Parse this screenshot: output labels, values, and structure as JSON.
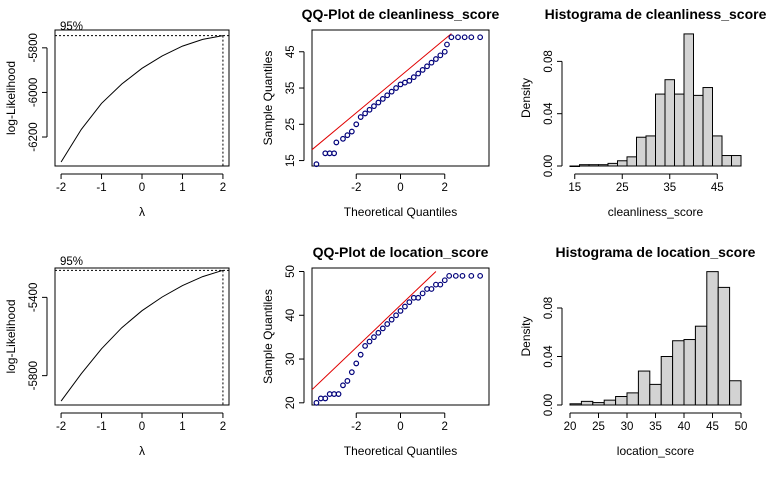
{
  "chart_data": [
    {
      "id": "bc1",
      "type": "line",
      "title": "",
      "xlabel": "λ",
      "ylabel": "log-Likelihood",
      "xlim": [
        -2.15,
        2.15
      ],
      "ylim": [
        -6330,
        -5720
      ],
      "xticks": [
        "-2",
        "-1",
        "0",
        "1",
        "2"
      ],
      "yticks": [
        "-6200",
        "-6000",
        "-5800"
      ],
      "annotation": "95%",
      "x": [
        -2,
        -1.5,
        -1,
        -0.5,
        0,
        0.5,
        1,
        1.5,
        2
      ],
      "y": [
        -6312,
        -6166,
        -6049,
        -5962,
        -5892,
        -5836,
        -5792,
        -5762,
        -5745
      ],
      "max_line_y": -5745,
      "ci_line_y": -5747,
      "optimum_x": 2
    },
    {
      "id": "qq1",
      "type": "scatter",
      "title": "QQ-Plot de cleanliness_score",
      "xlabel": "Theoretical Quantiles",
      "ylabel": "Sample Quantiles",
      "xlim": [
        -4,
        4
      ],
      "ylim": [
        13.5,
        51
      ],
      "xticks": [
        "-2",
        "0",
        "2"
      ],
      "yticks": [
        "15",
        "25",
        "35",
        "45"
      ],
      "reference_line": {
        "x": [
          -4,
          2.3
        ],
        "y": [
          18,
          50
        ]
      },
      "x": [
        -3.8,
        -3.4,
        -3.2,
        -3.0,
        -2.9,
        -2.6,
        -2.4,
        -2.2,
        -2.0,
        -1.8,
        -1.6,
        -1.4,
        -1.2,
        -1.0,
        -0.8,
        -0.6,
        -0.4,
        -0.2,
        0.0,
        0.2,
        0.4,
        0.6,
        0.8,
        1.0,
        1.2,
        1.4,
        1.6,
        1.8,
        2.0,
        2.1,
        2.3,
        2.6,
        2.9,
        3.2,
        3.6
      ],
      "y": [
        14,
        17,
        17,
        17,
        20,
        21,
        22,
        23,
        25,
        27,
        28,
        29,
        30,
        31,
        32,
        33,
        34,
        35,
        36,
        36.5,
        37,
        38,
        39,
        40,
        41,
        42,
        43,
        44,
        45,
        47,
        49,
        49,
        49,
        49,
        49
      ]
    },
    {
      "id": "h1",
      "type": "bar",
      "title": "Histograma de cleanliness_score",
      "xlabel": "cleanliness_score",
      "ylabel": "Density",
      "xlim": [
        14,
        50
      ],
      "ylim": [
        0,
        0.104
      ],
      "xticks": [
        "15",
        "25",
        "35",
        "45"
      ],
      "yticks": [
        "0.00",
        "0.04",
        "0.08"
      ],
      "bins": [
        [
          14,
          16,
          0.0
        ],
        [
          16,
          18,
          0.001
        ],
        [
          18,
          20,
          0.001
        ],
        [
          20,
          22,
          0.001
        ],
        [
          22,
          24,
          0.002
        ],
        [
          24,
          26,
          0.004
        ],
        [
          26,
          28,
          0.007
        ],
        [
          28,
          30,
          0.022
        ],
        [
          30,
          32,
          0.023
        ],
        [
          32,
          34,
          0.055
        ],
        [
          34,
          36,
          0.066
        ],
        [
          36,
          38,
          0.055
        ],
        [
          38,
          40,
          0.101
        ],
        [
          40,
          42,
          0.054
        ],
        [
          42,
          44,
          0.06
        ],
        [
          44,
          46,
          0.023
        ],
        [
          46,
          48,
          0.008
        ],
        [
          48,
          50,
          0.008
        ]
      ]
    },
    {
      "id": "bc2",
      "type": "line",
      "title": "",
      "xlabel": "λ",
      "ylabel": "log-Likelihood",
      "xlim": [
        -2.15,
        2.15
      ],
      "ylim": [
        -5950,
        -5250
      ],
      "xticks": [
        "-2",
        "-1",
        "0",
        "1",
        "2"
      ],
      "yticks": [
        "-5800",
        "-5400"
      ],
      "annotation": "95%",
      "x": [
        -2,
        -1.5,
        -1,
        -0.5,
        0,
        0.5,
        1,
        1.5,
        2
      ],
      "y": [
        -5930,
        -5790,
        -5663,
        -5555,
        -5468,
        -5398,
        -5340,
        -5294,
        -5262
      ],
      "max_line_y": -5262,
      "ci_line_y": -5265,
      "optimum_x": 2
    },
    {
      "id": "qq2",
      "type": "scatter",
      "title": "QQ-Plot de location_score",
      "xlabel": "Theoretical Quantiles",
      "ylabel": "Sample Quantiles",
      "xlim": [
        -4,
        4
      ],
      "ylim": [
        19.5,
        50.8
      ],
      "xticks": [
        "-2",
        "0",
        "2"
      ],
      "yticks": [
        "20",
        "30",
        "40",
        "50"
      ],
      "reference_line": {
        "x": [
          -4,
          1.6
        ],
        "y": [
          23,
          50
        ]
      },
      "x": [
        -3.8,
        -3.6,
        -3.4,
        -3.2,
        -3.0,
        -2.8,
        -2.6,
        -2.4,
        -2.2,
        -2.0,
        -1.8,
        -1.6,
        -1.4,
        -1.2,
        -1.0,
        -0.8,
        -0.6,
        -0.4,
        -0.2,
        0.0,
        0.2,
        0.4,
        0.6,
        0.8,
        1.0,
        1.2,
        1.4,
        1.6,
        1.8,
        2.0,
        2.2,
        2.5,
        2.8,
        3.2,
        3.6
      ],
      "y": [
        20,
        21,
        21,
        22,
        22,
        22,
        24,
        25,
        27,
        29,
        31,
        33,
        34,
        35,
        36,
        37,
        38,
        39,
        40,
        41,
        42,
        43,
        44,
        44,
        45,
        46,
        46,
        47,
        47,
        48,
        49,
        49,
        49,
        49,
        49
      ]
    },
    {
      "id": "h2",
      "type": "bar",
      "title": "Histograma de location_score",
      "xlabel": "location_score",
      "ylabel": "Density",
      "xlim": [
        20,
        50
      ],
      "ylim": [
        0,
        0.113
      ],
      "xticks": [
        "20",
        "25",
        "30",
        "35",
        "40",
        "45",
        "50"
      ],
      "yticks": [
        "0.00",
        "0.04",
        "0.08"
      ],
      "bins": [
        [
          20,
          22,
          0.001
        ],
        [
          22,
          24,
          0.003
        ],
        [
          24,
          26,
          0.002
        ],
        [
          26,
          28,
          0.004
        ],
        [
          28,
          30,
          0.007
        ],
        [
          30,
          32,
          0.01
        ],
        [
          32,
          34,
          0.028
        ],
        [
          34,
          36,
          0.017
        ],
        [
          36,
          38,
          0.04
        ],
        [
          38,
          40,
          0.053
        ],
        [
          40,
          42,
          0.054
        ],
        [
          42,
          44,
          0.065
        ],
        [
          44,
          46,
          0.11
        ],
        [
          46,
          48,
          0.097
        ],
        [
          48,
          50,
          0.02
        ]
      ]
    }
  ]
}
